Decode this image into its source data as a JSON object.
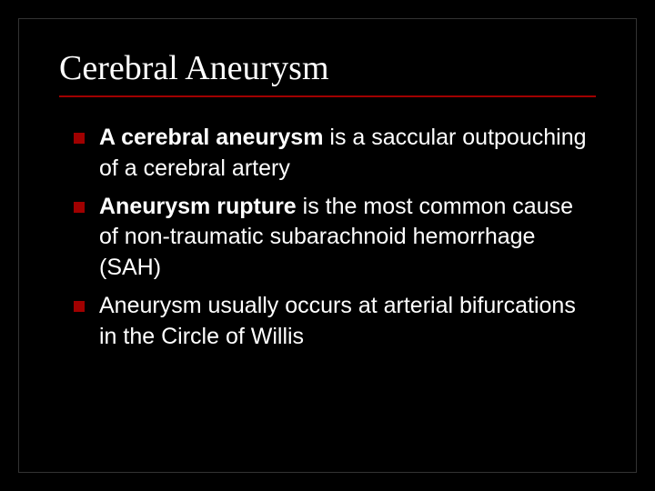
{
  "slide": {
    "title": "Cerebral Aneurysm",
    "title_font": "Georgia",
    "title_fontsize": 38,
    "title_color": "#ffffff",
    "underline_color": "#a00000",
    "background_color": "#000000",
    "bullet_marker_color": "#a00000",
    "body_font": "Arial",
    "body_fontsize": 25,
    "body_color": "#ffffff",
    "bullets": [
      {
        "bold_lead": "A cerebral aneurysm",
        "rest": " is a saccular outpouching of a cerebral artery"
      },
      {
        "bold_lead": "Aneurysm rupture",
        "rest": " is the most common cause of non-traumatic subarachnoid hemorrhage (SAH)"
      },
      {
        "bold_lead": "",
        "rest": "Aneurysm usually occurs at arterial bifurcations in the Circle of Willis"
      }
    ]
  }
}
